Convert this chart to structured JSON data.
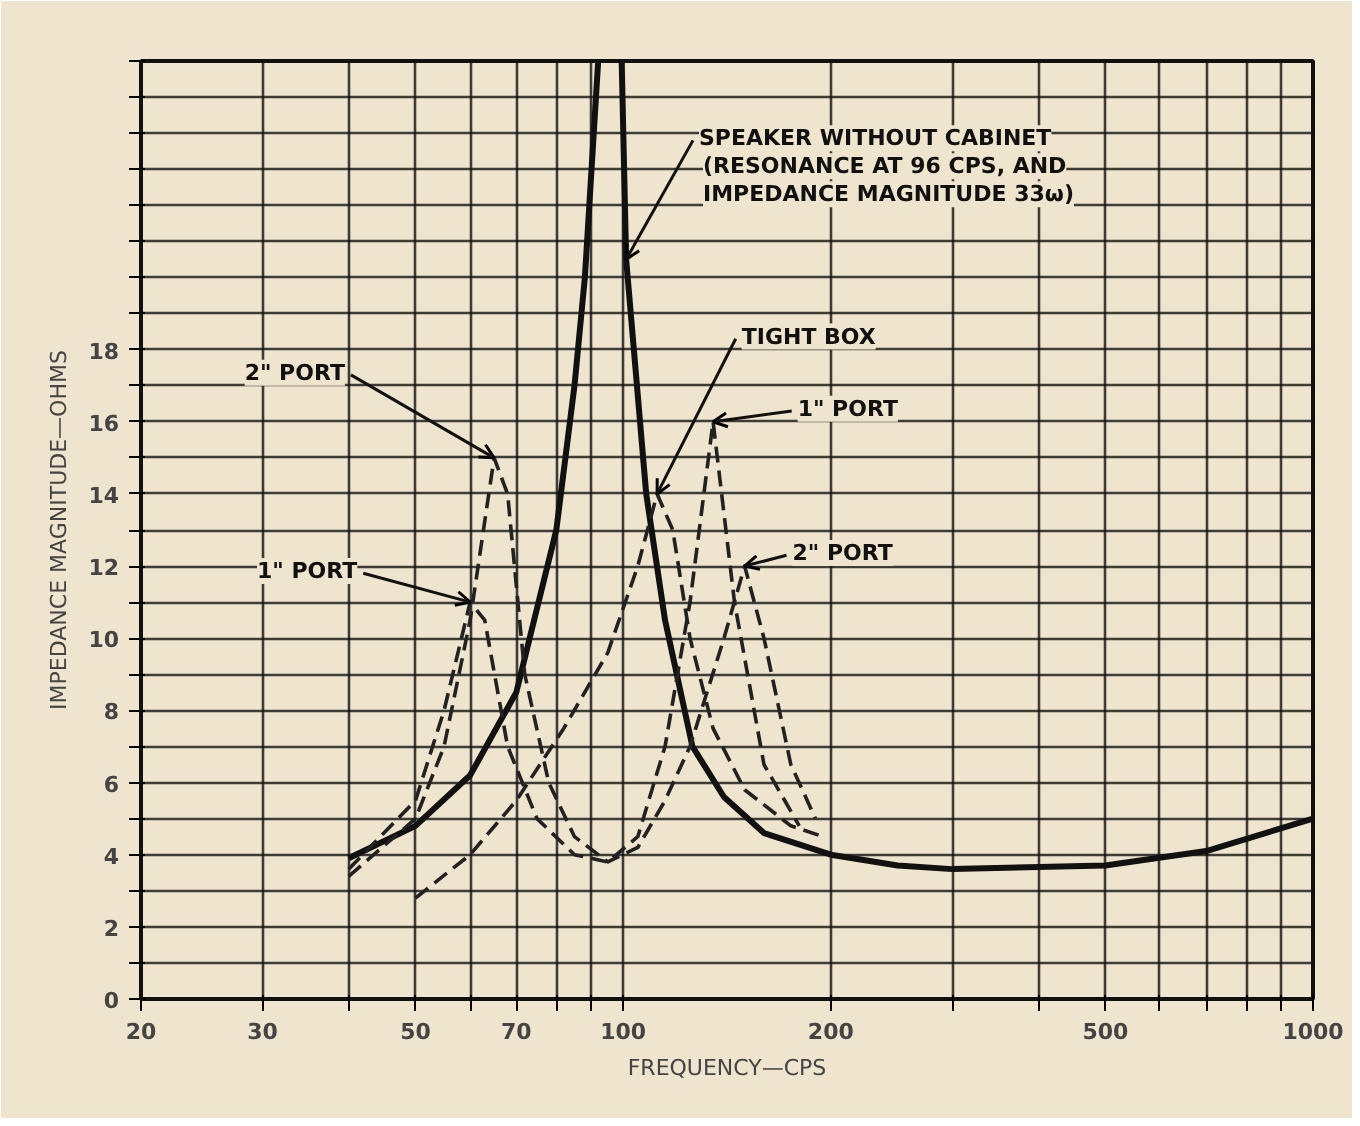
{
  "chart_data": {
    "type": "line",
    "xlabel": "FREQUENCY—CPS",
    "ylabel": "IMPEDANCE MAGNITUDE—OHMS",
    "log": "x",
    "grid": true,
    "marker": "none",
    "xlim": [
      20,
      1000
    ],
    "ylim": [
      0,
      26
    ],
    "xticks": [
      20,
      30,
      {
        "value": 40,
        "label": null
      },
      50,
      {
        "value": 60,
        "label": null
      },
      70,
      {
        "value": 80,
        "label": null
      },
      {
        "value": 90,
        "label": null
      },
      100,
      200,
      {
        "value": 300,
        "label": null
      },
      {
        "value": 400,
        "label": null
      },
      500,
      {
        "value": 600,
        "label": null
      },
      {
        "value": 700,
        "label": null
      },
      {
        "value": 800,
        "label": null
      },
      {
        "value": 900,
        "label": null
      },
      1000
    ],
    "yticks": [
      0,
      {
        "value": 1,
        "label": null
      },
      2,
      {
        "value": 3,
        "label": null
      },
      4,
      {
        "value": 5,
        "label": null
      },
      6,
      {
        "value": 7,
        "label": null
      },
      8,
      {
        "value": 9,
        "label": null
      },
      10,
      {
        "value": 11,
        "label": null
      },
      12,
      {
        "value": 13,
        "label": null
      },
      14,
      {
        "value": 15,
        "label": null
      },
      16,
      {
        "value": 17,
        "label": null
      },
      18,
      {
        "value": 19,
        "label": null
      },
      {
        "value": 20,
        "label": null
      },
      {
        "value": 21,
        "label": null
      },
      {
        "value": 22,
        "label": null
      },
      {
        "value": 23,
        "label": null
      },
      {
        "value": 24,
        "label": null
      },
      {
        "value": 25,
        "label": null
      },
      {
        "value": 26,
        "label": null
      }
    ],
    "series": [
      {
        "color": "#111111",
        "line_style": "solid",
        "x": [
          40,
          50,
          60,
          70,
          80,
          85,
          88,
          92,
          96,
          99.5,
          101,
          108,
          115,
          126,
          140,
          160,
          200,
          250,
          300,
          500,
          700,
          1000
        ],
        "values": [
          3.9,
          4.8,
          6.2,
          8.5,
          13,
          17,
          20,
          26,
          null,
          26,
          20.5,
          14,
          10.5,
          7,
          5.6,
          4.6,
          4,
          3.7,
          3.6,
          3.7,
          4.1,
          5
        ]
      },
      {
        "color": "#222222",
        "line_style": "dashed",
        "x": [
          50,
          60,
          70,
          82,
          95,
          105,
          112,
          118,
          125,
          135,
          150,
          175,
          195
        ],
        "values": [
          2.8,
          4,
          5.5,
          7.5,
          9.6,
          12,
          14,
          13,
          10,
          7.5,
          5.8,
          4.8,
          4.5
        ]
      },
      {
        "color": "#222222",
        "line_style": "dashed",
        "x": [
          40,
          50,
          55,
          60,
          63,
          68,
          75,
          85,
          95,
          105,
          115,
          125,
          135,
          145,
          160,
          180
        ],
        "values": [
          3.6,
          5.5,
          8,
          11,
          10.5,
          7,
          5,
          4,
          3.8,
          4.5,
          7,
          11,
          16,
          11,
          6.5,
          4.8
        ]
      },
      {
        "color": "#222222",
        "line_style": "dashed",
        "x": [
          40,
          50,
          55,
          60,
          65,
          68,
          72,
          78,
          85,
          95,
          105,
          115,
          125,
          140,
          150,
          160,
          175,
          190
        ],
        "values": [
          3.4,
          5,
          7,
          10.5,
          15,
          14,
          9,
          6,
          4.5,
          3.8,
          4.2,
          5.5,
          7,
          10,
          12,
          10,
          6.5,
          5
        ]
      }
    ],
    "annotations": [
      {
        "text": "SPEAKER WITHOUT CABINET\n(RESONANCE AT 96 CPS, AND\nIMPEDANCE MAGNITUDE 33ω)",
        "x": 101,
        "y": 20.5
      },
      {
        "text": "TIGHT BOX",
        "x": 112,
        "y": 14
      },
      {
        "text": "1\" PORT",
        "x": 135,
        "y": 16
      },
      {
        "text": "2\" PORT",
        "x": 150,
        "y": 12
      },
      {
        "text": "2\" PORT",
        "x": 65,
        "y": 15
      },
      {
        "text": "1\" PORT",
        "x": 60,
        "y": 11
      }
    ]
  }
}
